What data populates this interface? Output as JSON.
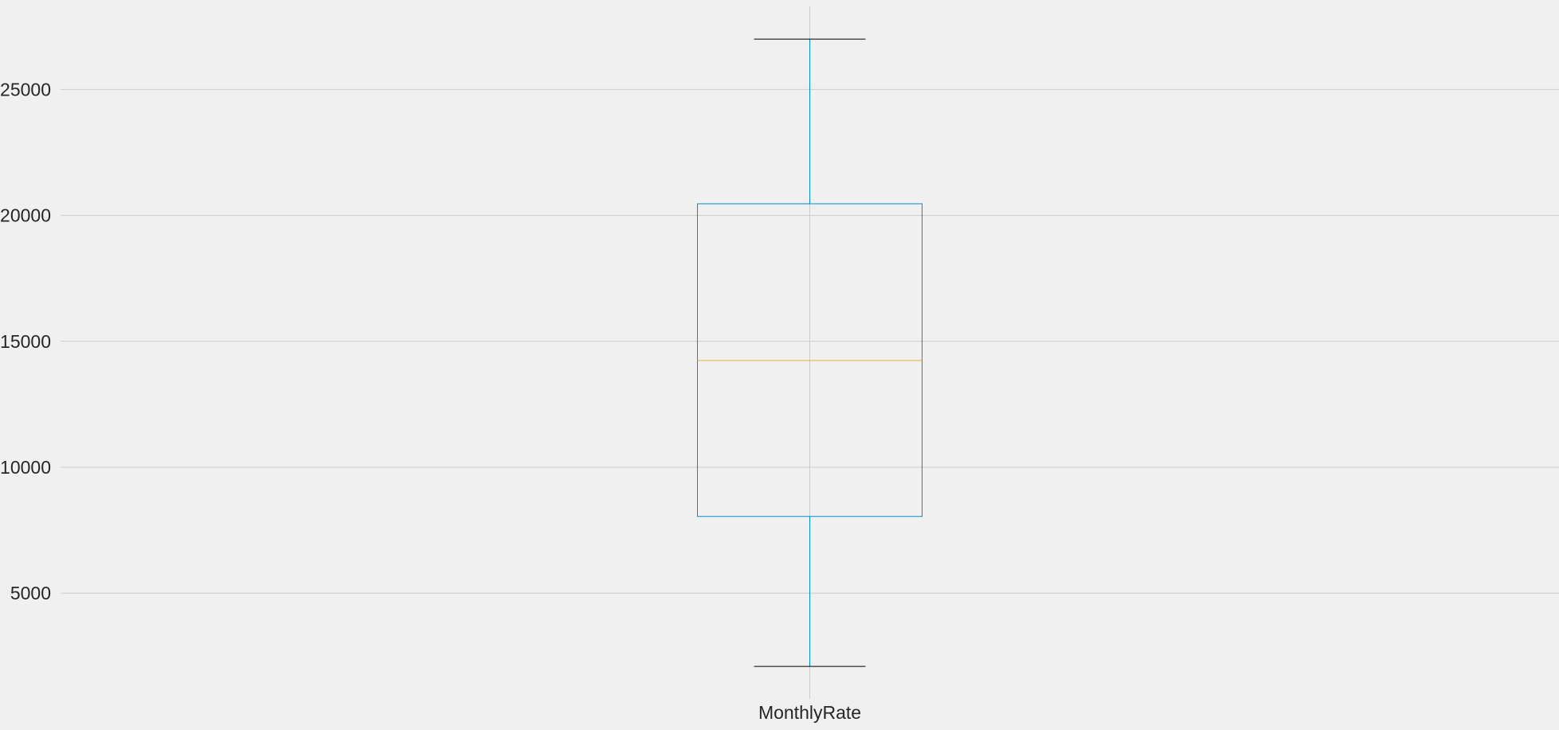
{
  "chart_data": {
    "type": "box",
    "title": "",
    "xlabel": "",
    "ylabel": "",
    "categories": [
      "MonthlyRate"
    ],
    "boxes": [
      {
        "name": "MonthlyRate",
        "whisker_low": 2094,
        "q1": 8047,
        "median": 14236,
        "q3": 20462,
        "whisker_high": 26999
      }
    ],
    "y_ticks": [
      5000,
      10000,
      15000,
      20000,
      25000
    ],
    "y_tick_labels": [
      "5000",
      "10000",
      "15000",
      "20000",
      "25000"
    ],
    "ylim": [
      800,
      28300
    ],
    "grid": true,
    "colors": {
      "background": "#f0f0f0",
      "grid": "#cbcbcb",
      "box": "#008fd5",
      "whisker": "#008fd5",
      "cap": "#000000",
      "median": "#e5ae38"
    }
  }
}
